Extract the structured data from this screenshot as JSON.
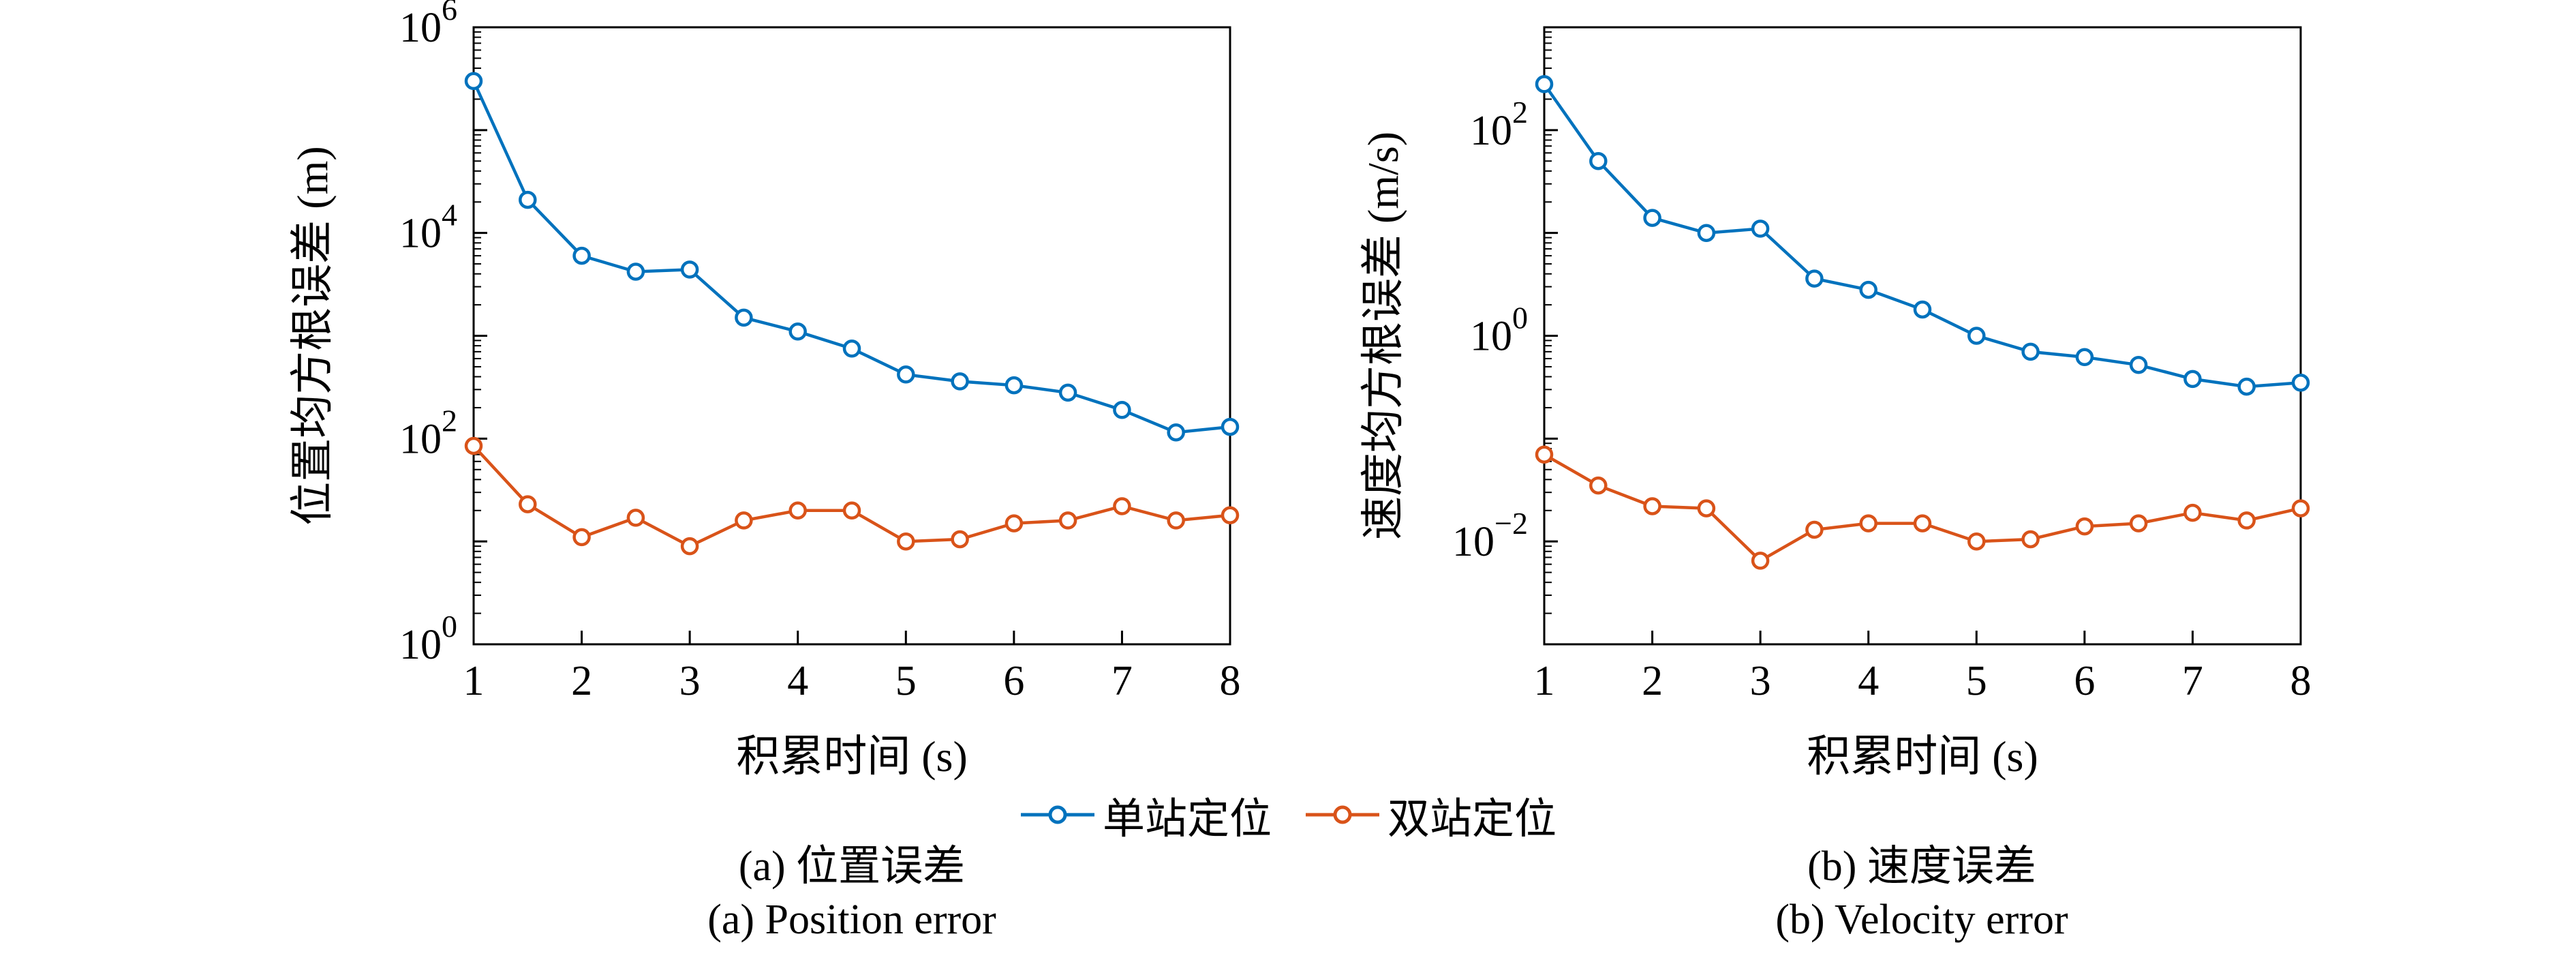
{
  "page": {
    "background": "#ffffff"
  },
  "legend": {
    "items": [
      {
        "label": "单站定位",
        "color": "#0072BD"
      },
      {
        "label": "双站定位",
        "color": "#D95319"
      }
    ]
  },
  "captions": {
    "left": {
      "line1": "(a) 位置误差",
      "line2": "(a) Position error"
    },
    "right": {
      "line1": "(b) 速度误差",
      "line2": "(b) Velocity error"
    }
  },
  "chart_data": [
    {
      "id": "position-error",
      "type": "line",
      "title": "",
      "xlabel": "积累时间 (s)",
      "ylabel": "位置均方根误差 (m)",
      "xlim": [
        1,
        8
      ],
      "xticks": [
        1,
        2,
        3,
        4,
        5,
        6,
        7,
        8
      ],
      "yscale": "log",
      "ylim_exp": [
        0,
        6
      ],
      "ytick_exps": [
        0,
        2,
        4,
        6
      ],
      "grid": false,
      "legend_position": "below-figure",
      "x": [
        1,
        1.5,
        2,
        2.5,
        3,
        3.5,
        4,
        4.5,
        5,
        5.5,
        6,
        6.5,
        7,
        7.5,
        8
      ],
      "series": [
        {
          "name": "单站定位",
          "color": "#0072BD",
          "values": [
            300000,
            21000,
            6000,
            4200,
            4400,
            1500,
            1100,
            750,
            420,
            360,
            330,
            280,
            190,
            115,
            130
          ]
        },
        {
          "name": "双站定位",
          "color": "#D95319",
          "values": [
            85,
            23,
            11,
            17,
            9,
            16,
            20,
            20,
            10,
            10.5,
            15,
            16,
            22,
            16,
            18
          ]
        }
      ]
    },
    {
      "id": "velocity-error",
      "type": "line",
      "title": "",
      "xlabel": "积累时间 (s)",
      "ylabel": "速度均方根误差 (m/s)",
      "xlim": [
        1,
        8
      ],
      "xticks": [
        1,
        2,
        3,
        4,
        5,
        6,
        7,
        8
      ],
      "yscale": "log",
      "ylim_exp": [
        -3,
        3
      ],
      "ytick_exps": [
        -2,
        0,
        2
      ],
      "grid": false,
      "legend_position": "below-figure",
      "x": [
        1,
        1.5,
        2,
        2.5,
        3,
        3.5,
        4,
        4.5,
        5,
        5.5,
        6,
        6.5,
        7,
        7.5,
        8
      ],
      "series": [
        {
          "name": "单站定位",
          "color": "#0072BD",
          "values": [
            280,
            50,
            14,
            10,
            11,
            3.6,
            2.8,
            1.8,
            1.0,
            0.7,
            0.62,
            0.52,
            0.38,
            0.32,
            0.35
          ]
        },
        {
          "name": "双站定位",
          "color": "#D95319",
          "values": [
            0.07,
            0.035,
            0.022,
            0.021,
            0.0065,
            0.013,
            0.015,
            0.015,
            0.01,
            0.0105,
            0.014,
            0.015,
            0.019,
            0.016,
            0.021
          ]
        }
      ]
    }
  ]
}
